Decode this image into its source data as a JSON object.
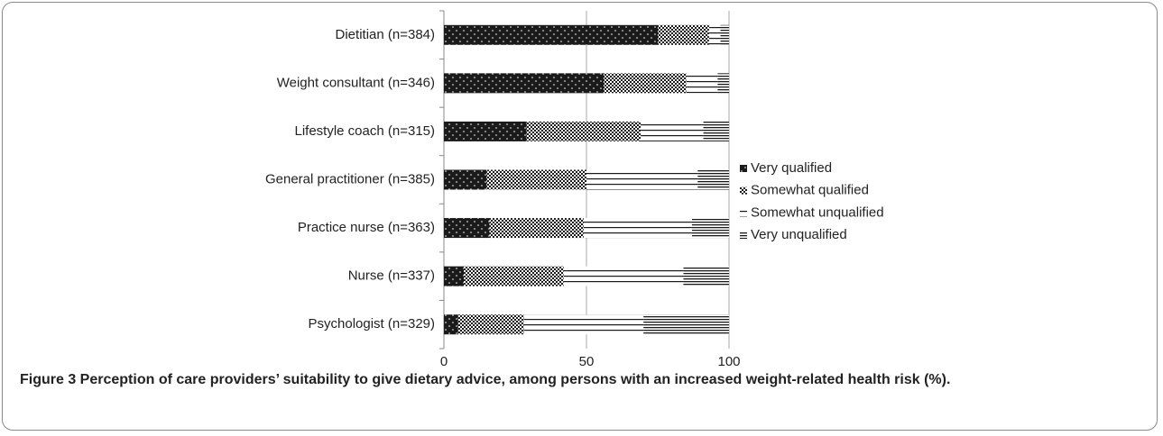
{
  "chart_data": {
    "type": "stacked-horizontal-bar",
    "caption": "Figure 3 Perception of care providers’ suitability to give dietary advice, among persons with an increased weight-related health risk (%).",
    "categories": [
      "Dietitian (n=384)",
      "Weight consultant (n=346)",
      "Lifestyle coach (n=315)",
      "General practitioner (n=385)",
      "Practice nurse (n=363)",
      "Nurse (n=337)",
      "Psychologist (n=329)"
    ],
    "series": [
      {
        "name": "Very qualified",
        "color": "#1a1a1a",
        "pattern": "dots",
        "values": [
          75,
          56,
          29,
          15,
          16,
          7,
          5
        ]
      },
      {
        "name": "Somewhat qualified",
        "color": "#1a1a1a",
        "pattern": "crosshatch",
        "values": [
          18,
          29,
          40,
          35,
          33,
          35,
          23
        ]
      },
      {
        "name": "Somewhat unqualified",
        "color": "#1a1a1a",
        "pattern": "lines",
        "values": [
          4,
          11,
          22,
          39,
          38,
          42,
          42
        ]
      },
      {
        "name": "Very unqualified",
        "color": "#1a1a1a",
        "pattern": "dense-lines",
        "values": [
          3,
          4,
          9,
          11,
          13,
          16,
          30
        ]
      }
    ],
    "xlim": [
      0,
      100
    ],
    "xticks": [
      0,
      50,
      100
    ],
    "grid": true,
    "legend": "right"
  }
}
